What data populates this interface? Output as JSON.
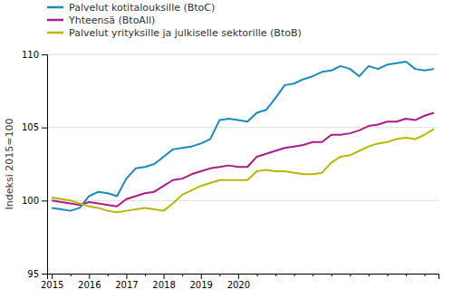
{
  "chart_data": {
    "type": "line",
    "ylabel": "Indeksi 2015=100",
    "categories": [
      "2015",
      null,
      null,
      null,
      "2016",
      null,
      null,
      null,
      "2017",
      null,
      null,
      null,
      "2018",
      null,
      null,
      null,
      "2019",
      null,
      null,
      null,
      "2020",
      null,
      null,
      null,
      null,
      null,
      null,
      null,
      null,
      null,
      null,
      null,
      null,
      null,
      null,
      null,
      null,
      null,
      null,
      null,
      null,
      null
    ],
    "series": [
      {
        "name": "Palvelut kotitalouksille (BtoC)",
        "color": "#1a8abf",
        "values": [
          99.5,
          99.4,
          99.3,
          99.5,
          100.3,
          100.6,
          100.5,
          100.3,
          101.5,
          102.2,
          102.3,
          102.5,
          103.0,
          103.5,
          103.6,
          103.7,
          103.9,
          104.2,
          105.5,
          105.6,
          105.5,
          105.4,
          106.0,
          106.2,
          107.0,
          107.9,
          108.0,
          108.3,
          108.5,
          108.8,
          108.9,
          109.2,
          109.0,
          108.5,
          109.2,
          109.0,
          109.3,
          109.4,
          109.5,
          109.0,
          108.9,
          109.0
        ]
      },
      {
        "name": "Yhteensä (BtoAll)",
        "color": "#b01a8a",
        "values": [
          100.0,
          99.9,
          99.8,
          99.7,
          99.9,
          99.8,
          99.7,
          99.6,
          100.1,
          100.3,
          100.5,
          100.6,
          101.0,
          101.4,
          101.5,
          101.8,
          102.0,
          102.2,
          102.3,
          102.4,
          102.3,
          102.3,
          103.0,
          103.2,
          103.4,
          103.6,
          103.7,
          103.8,
          104.0,
          104.0,
          104.5,
          104.5,
          104.6,
          104.8,
          105.1,
          105.2,
          105.4,
          105.4,
          105.6,
          105.5,
          105.8,
          106.0
        ]
      },
      {
        "name": "Palvelut yrityksille ja julkiselle sektorille (BtoB)",
        "color": "#b8b800",
        "values": [
          100.2,
          100.1,
          100.0,
          99.8,
          99.6,
          99.5,
          99.3,
          99.2,
          99.3,
          99.4,
          99.5,
          99.4,
          99.3,
          99.8,
          100.4,
          100.7,
          101.0,
          101.2,
          101.4,
          101.4,
          101.4,
          101.4,
          102.0,
          102.1,
          102.0,
          102.0,
          101.9,
          101.8,
          101.8,
          101.9,
          102.6,
          103.0,
          103.1,
          103.4,
          103.7,
          103.9,
          104.0,
          104.2,
          104.3,
          104.2,
          104.5,
          104.9
        ]
      }
    ],
    "ylim": [
      95,
      110
    ],
    "yticks": [
      95,
      100,
      105,
      110
    ],
    "grid": true,
    "legend": "top-left"
  }
}
